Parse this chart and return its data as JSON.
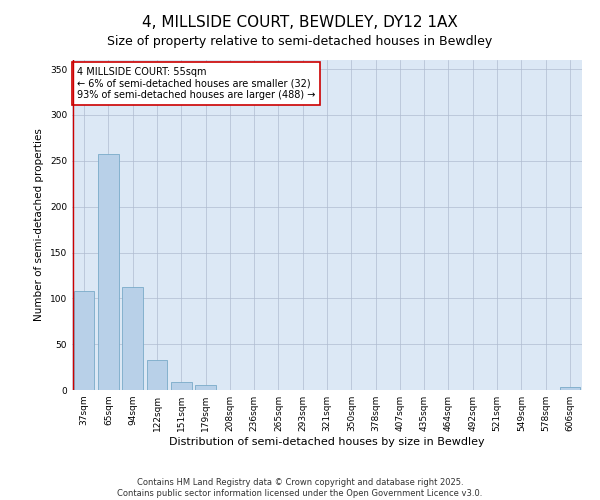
{
  "title": "4, MILLSIDE COURT, BEWDLEY, DY12 1AX",
  "subtitle": "Size of property relative to semi-detached houses in Bewdley",
  "xlabel": "Distribution of semi-detached houses by size in Bewdley",
  "ylabel": "Number of semi-detached properties",
  "categories": [
    "37sqm",
    "65sqm",
    "94sqm",
    "122sqm",
    "151sqm",
    "179sqm",
    "208sqm",
    "236sqm",
    "265sqm",
    "293sqm",
    "321sqm",
    "350sqm",
    "378sqm",
    "407sqm",
    "435sqm",
    "464sqm",
    "492sqm",
    "521sqm",
    "549sqm",
    "578sqm",
    "606sqm"
  ],
  "values": [
    108,
    257,
    112,
    33,
    9,
    5,
    0,
    0,
    0,
    0,
    0,
    0,
    0,
    0,
    0,
    0,
    0,
    0,
    0,
    0,
    3
  ],
  "bar_color": "#b8d0e8",
  "bar_edge_color": "#7aaac8",
  "highlight_color": "#cc0000",
  "annotation_text": "4 MILLSIDE COURT: 55sqm\n← 6% of semi-detached houses are smaller (32)\n93% of semi-detached houses are larger (488) →",
  "annotation_box_color": "#ffffff",
  "annotation_box_edge_color": "#cc0000",
  "ylim": [
    0,
    360
  ],
  "yticks": [
    0,
    50,
    100,
    150,
    200,
    250,
    300,
    350
  ],
  "background_color": "#ccdcee",
  "plot_bg_color": "#dce8f5",
  "footer_text": "Contains HM Land Registry data © Crown copyright and database right 2025.\nContains public sector information licensed under the Open Government Licence v3.0.",
  "title_fontsize": 11,
  "subtitle_fontsize": 9,
  "xlabel_fontsize": 8,
  "ylabel_fontsize": 7.5,
  "tick_fontsize": 6.5,
  "annotation_fontsize": 7,
  "footer_fontsize": 6
}
